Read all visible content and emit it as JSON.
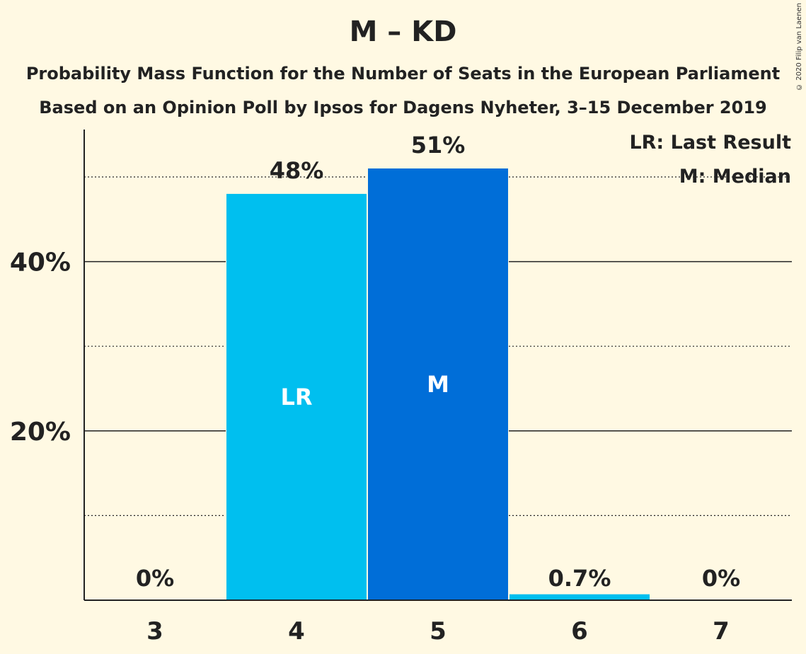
{
  "title": "M – KD",
  "subtitle1": "Probability Mass Function for the Number of Seats in the European Parliament",
  "subtitle2": "Based on an Opinion Poll by Ipsos for Dagens Nyheter, 3–15 December 2019",
  "copyright": "© 2020 Filip van Laenen",
  "legend": {
    "last_result": "LR: Last Result",
    "median": "M: Median"
  },
  "colors": {
    "background": "#FFF9E3",
    "bar_light": "#00BFEF",
    "bar_median": "#006ED8",
    "text": "#222222"
  },
  "chart_data": {
    "type": "bar",
    "categories": [
      "3",
      "4",
      "5",
      "6",
      "7"
    ],
    "values": [
      0,
      48,
      51,
      0.7,
      0
    ],
    "value_labels": [
      "0%",
      "48%",
      "51%",
      "0.7%",
      "0%"
    ],
    "bar_markers": [
      "",
      "LR",
      "M",
      "",
      ""
    ],
    "ylim": [
      0,
      55
    ],
    "y_ticks": [
      20,
      40
    ],
    "y_tick_labels": [
      "20%",
      "40%"
    ],
    "y_minor_gridlines": [
      10,
      30,
      50
    ],
    "legend_position": "top-right"
  }
}
